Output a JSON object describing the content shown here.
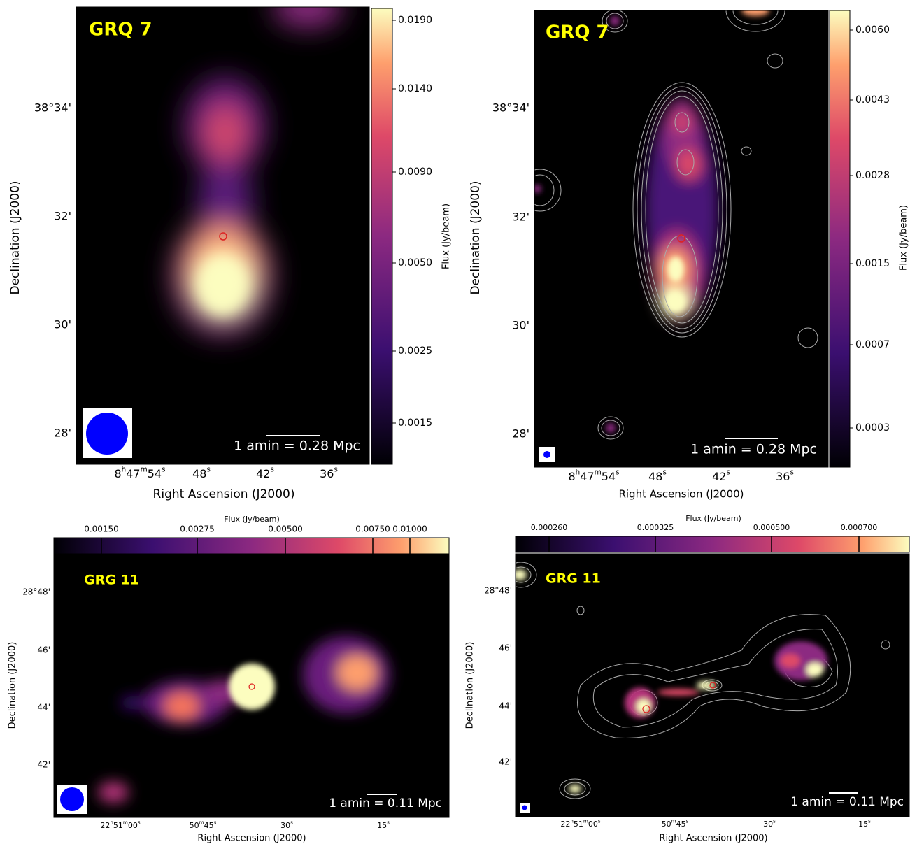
{
  "panels": [
    {
      "label": "GRQ 7",
      "scale_bar": "1 amin = 0.28 Mpc",
      "x_label": "Right Ascension (J2000)",
      "y_label": "Declination (J2000)",
      "colorbar_label": "Flux (Jy/beam)",
      "colorbar_ticks": [
        "0.0190",
        "0.0140",
        "0.0090",
        "0.0050",
        "0.0025",
        "0.0015"
      ],
      "y_ticks": [
        "38°34'",
        "32'",
        "30'",
        "28'"
      ],
      "x_ticks": [
        [
          "8",
          "h",
          "47",
          "m",
          "54",
          "s"
        ],
        [
          "48",
          "s"
        ],
        [
          "42",
          "s"
        ],
        [
          "36",
          "s"
        ]
      ]
    },
    {
      "label": "GRQ 7",
      "scale_bar": "1 amin = 0.28 Mpc",
      "x_label": "Right Ascension (J2000)",
      "y_label": "Declination (J2000)",
      "colorbar_label": "Flux (Jy/beam)",
      "colorbar_ticks": [
        "0.0060",
        "0.0043",
        "0.0028",
        "0.0015",
        "0.0007",
        "0.0003"
      ],
      "y_ticks": [
        "38°34'",
        "32'",
        "30'",
        "28'"
      ],
      "x_ticks": [
        [
          "8",
          "h",
          "47",
          "m",
          "54",
          "s"
        ],
        [
          "48",
          "s"
        ],
        [
          "42",
          "s"
        ],
        [
          "36",
          "s"
        ]
      ]
    },
    {
      "label": "GRG 11",
      "scale_bar": "1 amin = 0.11 Mpc",
      "x_label": "Right Ascension (J2000)",
      "y_label": "Declination (J2000)",
      "colorbar_label": "Flux (Jy/beam)",
      "colorbar_ticks": [
        "0.00150",
        "0.00275",
        "0.00500",
        "0.00750",
        "0.01000"
      ],
      "y_ticks": [
        "28°48'",
        "46'",
        "44'",
        "42'"
      ],
      "x_ticks": [
        [
          "22",
          "h",
          "51",
          "m",
          "00",
          "s"
        ],
        [
          "50",
          "m",
          "45",
          "s"
        ],
        [
          "30",
          "s"
        ],
        [
          "15",
          "s"
        ]
      ]
    },
    {
      "label": "GRG 11",
      "scale_bar": "1 amin = 0.11 Mpc",
      "x_label": "Right Ascension (J2000)",
      "y_label": "Declination (J2000)",
      "colorbar_label": "Flux (Jy/beam)",
      "colorbar_ticks": [
        "0.000260",
        "0.000325",
        "0.000500",
        "0.000700"
      ],
      "y_ticks": [
        "28°48'",
        "46'",
        "44'",
        "42'"
      ],
      "x_ticks": [
        [
          "22",
          "h",
          "51",
          "m",
          "00",
          "s"
        ],
        [
          "50",
          "m",
          "45",
          "s"
        ],
        [
          "30",
          "s"
        ],
        [
          "15",
          "s"
        ]
      ]
    }
  ]
}
